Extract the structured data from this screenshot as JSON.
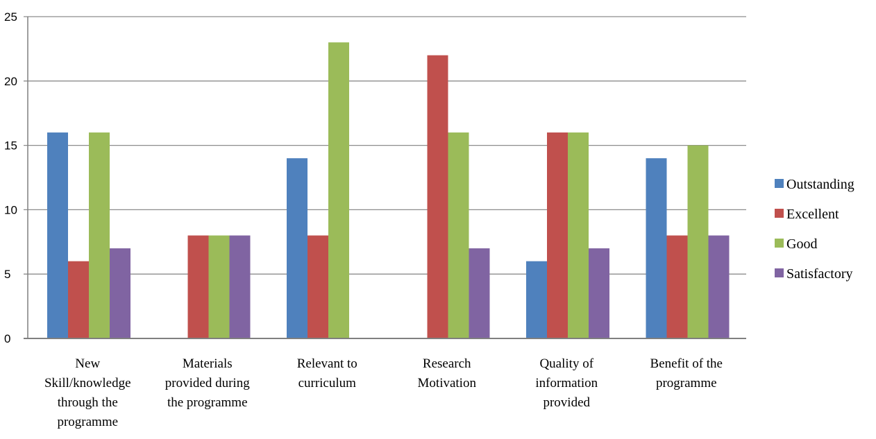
{
  "chart_data": {
    "type": "bar",
    "title": "",
    "xlabel": "",
    "ylabel": "",
    "ylim": [
      0,
      25
    ],
    "yticks": [
      0,
      5,
      10,
      15,
      20,
      25
    ],
    "grid": true,
    "legend_position": "right",
    "categories": [
      [
        "New",
        "Skill/knowledge",
        "through the",
        "programme"
      ],
      [
        "Materials",
        "provided during",
        "the programme"
      ],
      [
        "Relevant to",
        "curriculum"
      ],
      [
        "Research",
        "Motivation"
      ],
      [
        "Quality of",
        "information",
        "provided"
      ],
      [
        "Benefit of the",
        "programme"
      ]
    ],
    "series": [
      {
        "name": "Outstanding",
        "color": "#4f81bd",
        "values": [
          16,
          0,
          14,
          0,
          6,
          14
        ]
      },
      {
        "name": "Excellent",
        "color": "#c0504d",
        "values": [
          6,
          8,
          8,
          22,
          16,
          8
        ]
      },
      {
        "name": "Good",
        "color": "#9bbb59",
        "values": [
          16,
          8,
          23,
          16,
          16,
          15
        ]
      },
      {
        "name": "Satisfactory",
        "color": "#8064a2",
        "values": [
          7,
          8,
          0,
          7,
          7,
          8
        ]
      }
    ]
  }
}
